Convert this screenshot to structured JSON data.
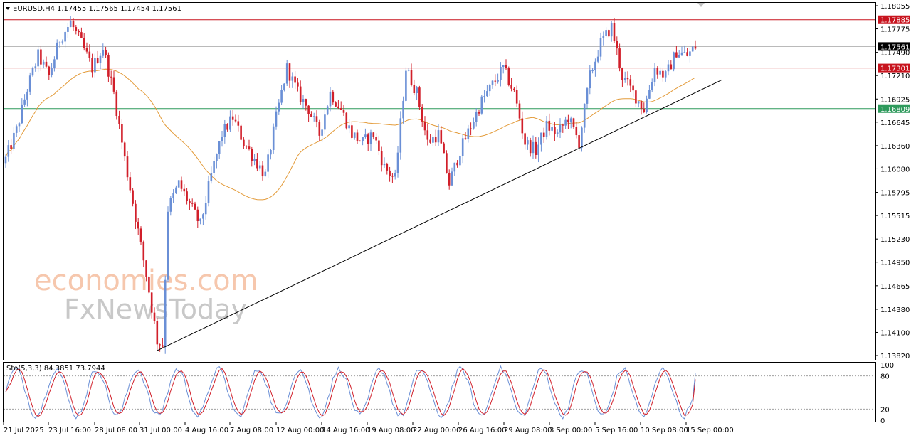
{
  "header": {
    "symbol": "EURUSD,H4",
    "ohlc": "1.17455 1.17565 1.17454 1.17561",
    "stoch_label": "Sto(5,3,3) 84.3851 73.7944"
  },
  "watermark": {
    "line1": "economies.com",
    "line2": "FxNewsToday"
  },
  "colors": {
    "bull": "#6a8fd6",
    "bear": "#d11f2a",
    "ma": "#e39b3a",
    "resistance_line": "#c8141e",
    "support_line": "#2e9a5c",
    "current_line": "#b0b0b0",
    "trendline": "#000000",
    "stoch_main": "#6a8fd6",
    "stoch_signal": "#d11f2a"
  },
  "chart_data": {
    "type": "candlestick",
    "title": "EURUSD,H4",
    "ylim": [
      1.1382,
      1.18055
    ],
    "price_ticks": [
      "1.18055",
      "1.17775",
      "1.17490",
      "1.17210",
      "1.16925",
      "1.16645",
      "1.16360",
      "1.16080",
      "1.15795",
      "1.15515",
      "1.15230",
      "1.14950",
      "1.14665",
      "1.14380",
      "1.14100",
      "1.13820"
    ],
    "x_labels": [
      "21 Jul 2025",
      "23 Jul 16:00",
      "28 Jul 08:00",
      "31 Jul 00:00",
      "4 Aug 16:00",
      "7 Aug 08:00",
      "12 Aug 00:00",
      "14 Aug 16:00",
      "19 Aug 08:00",
      "22 Aug 00:00",
      "26 Aug 16:00",
      "29 Aug 08:00",
      "3 Sep 00:00",
      "5 Sep 16:00",
      "10 Sep 08:00",
      "15 Sep 00:00"
    ],
    "levels": [
      {
        "label": "1.17885",
        "value": 1.17885,
        "kind": "resistance"
      },
      {
        "label": "1.17561",
        "value": 1.17561,
        "kind": "current"
      },
      {
        "label": "1.17301",
        "value": 1.17301,
        "kind": "resistance"
      },
      {
        "label": "1.16809",
        "value": 1.16809,
        "kind": "support"
      }
    ],
    "trendline": {
      "from": {
        "bar": 56,
        "price": 1.1388
      },
      "to": {
        "bar": 265,
        "price": 1.1716
      }
    },
    "close_path": [
      [
        0,
        1.162
      ],
      [
        4,
        1.1655
      ],
      [
        8,
        1.1705
      ],
      [
        12,
        1.1745
      ],
      [
        16,
        1.172
      ],
      [
        20,
        1.1765
      ],
      [
        24,
        1.1785
      ],
      [
        28,
        1.176
      ],
      [
        32,
        1.173
      ],
      [
        36,
        1.1755
      ],
      [
        40,
        1.17
      ],
      [
        44,
        1.162
      ],
      [
        48,
        1.155
      ],
      [
        52,
        1.148
      ],
      [
        56,
        1.14
      ],
      [
        58,
        1.1395
      ],
      [
        60,
        1.156
      ],
      [
        64,
        1.159
      ],
      [
        68,
        1.1565
      ],
      [
        72,
        1.154
      ],
      [
        76,
        1.16
      ],
      [
        80,
        1.165
      ],
      [
        84,
        1.167
      ],
      [
        88,
        1.164
      ],
      [
        92,
        1.162
      ],
      [
        96,
        1.16
      ],
      [
        100,
        1.167
      ],
      [
        104,
        1.173
      ],
      [
        108,
        1.17
      ],
      [
        112,
        1.168
      ],
      [
        116,
        1.165
      ],
      [
        120,
        1.17
      ],
      [
        124,
        1.168
      ],
      [
        128,
        1.165
      ],
      [
        132,
        1.164
      ],
      [
        136,
        1.165
      ],
      [
        140,
        1.161
      ],
      [
        144,
        1.1595
      ],
      [
        148,
        1.173
      ],
      [
        152,
        1.17
      ],
      [
        156,
        1.164
      ],
      [
        160,
        1.165
      ],
      [
        164,
        1.159
      ],
      [
        168,
        1.163
      ],
      [
        172,
        1.166
      ],
      [
        176,
        1.169
      ],
      [
        180,
        1.171
      ],
      [
        184,
        1.173
      ],
      [
        188,
        1.17
      ],
      [
        192,
        1.164
      ],
      [
        196,
        1.163
      ],
      [
        200,
        1.166
      ],
      [
        204,
        1.165
      ],
      [
        208,
        1.167
      ],
      [
        212,
        1.164
      ],
      [
        216,
        1.172
      ],
      [
        220,
        1.176
      ],
      [
        224,
        1.178
      ],
      [
        228,
        1.172
      ],
      [
        232,
        1.17
      ],
      [
        236,
        1.168
      ],
      [
        240,
        1.173
      ],
      [
        244,
        1.172
      ],
      [
        248,
        1.175
      ],
      [
        252,
        1.1745
      ],
      [
        255,
        1.1756
      ]
    ],
    "stochastic": {
      "levels": [
        100,
        80,
        20,
        0
      ],
      "main_last": 84.3851,
      "signal_last": 73.7944
    },
    "y_axis_side": "right",
    "grid": false
  }
}
